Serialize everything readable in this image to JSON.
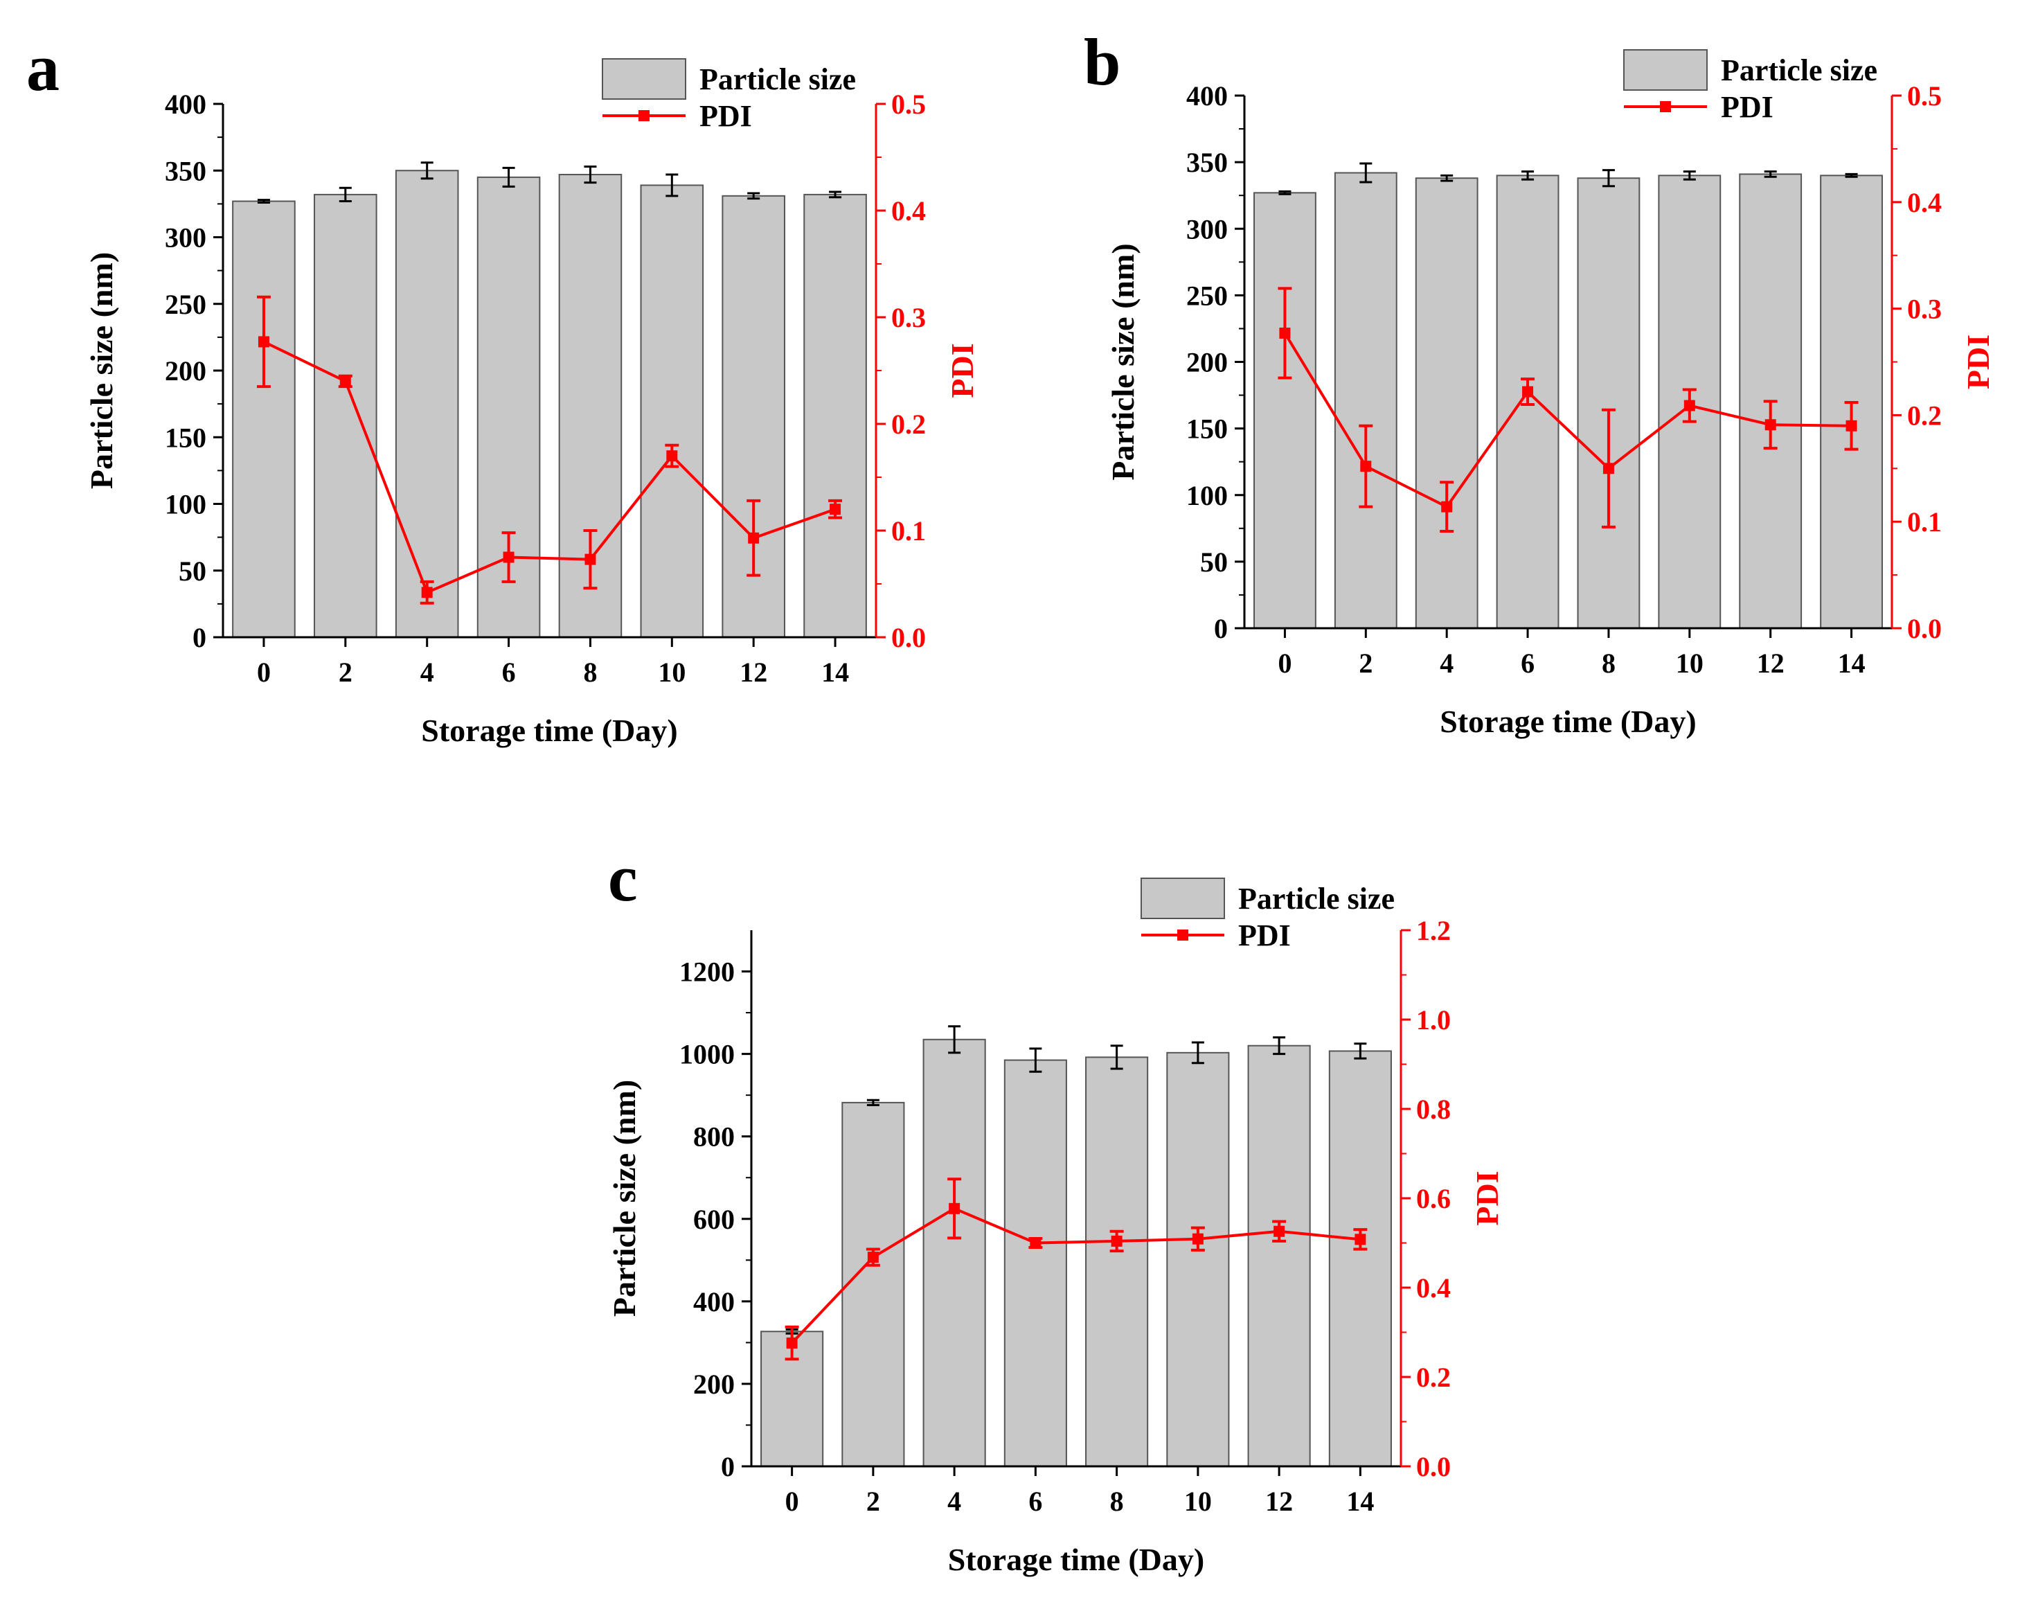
{
  "figure": {
    "colors": {
      "bar_fill": "#c8c8c8",
      "bar_stroke": "#555555",
      "axis": "#000000",
      "pdi": "#ff0000",
      "background": "#ffffff"
    },
    "legend": {
      "bar_label": "Particle size",
      "line_label": "PDI"
    }
  },
  "chart_data": [
    {
      "panel": "a",
      "type": "bar+line",
      "xlabel": "Storage time (Day)",
      "ylabel": "Particle size (nm)",
      "y2label": "PDI",
      "x_ticks": [
        "0",
        "2",
        "4",
        "6",
        "8",
        "10",
        "12",
        "14"
      ],
      "ylim": [
        0,
        400
      ],
      "y_ticks": [
        0,
        50,
        100,
        150,
        200,
        250,
        300,
        350,
        400
      ],
      "y2lim": [
        0.0,
        0.5
      ],
      "y2_ticks": [
        "0.0",
        "0.1",
        "0.2",
        "0.3",
        "0.4",
        "0.5"
      ],
      "legend_position": "top-right",
      "series": [
        {
          "name": "Particle size",
          "axis": "left",
          "kind": "bar",
          "values": [
            327,
            332,
            350,
            345,
            347,
            339,
            331,
            332
          ],
          "errors": [
            1,
            5,
            6,
            7,
            6,
            8,
            2,
            2
          ]
        },
        {
          "name": "PDI",
          "axis": "right",
          "kind": "line",
          "values": [
            0.277,
            0.24,
            0.042,
            0.075,
            0.073,
            0.17,
            0.093,
            0.12
          ],
          "errors": [
            0.042,
            0.005,
            0.01,
            0.023,
            0.027,
            0.01,
            0.035,
            0.008
          ]
        }
      ]
    },
    {
      "panel": "b",
      "type": "bar+line",
      "xlabel": "Storage time (Day)",
      "ylabel": "Particle size (nm)",
      "y2label": "PDI",
      "x_ticks": [
        "0",
        "2",
        "4",
        "6",
        "8",
        "10",
        "12",
        "14"
      ],
      "ylim": [
        0,
        400
      ],
      "y_ticks": [
        0,
        50,
        100,
        150,
        200,
        250,
        300,
        350,
        400
      ],
      "y2lim": [
        0.0,
        0.5
      ],
      "y2_ticks": [
        "0.0",
        "0.1",
        "0.2",
        "0.3",
        "0.4",
        "0.5"
      ],
      "legend_position": "top-right",
      "series": [
        {
          "name": "Particle size",
          "axis": "left",
          "kind": "bar",
          "values": [
            327,
            342,
            338,
            340,
            338,
            340,
            341,
            340
          ],
          "errors": [
            1,
            7,
            2,
            3,
            6,
            3,
            2,
            1
          ]
        },
        {
          "name": "PDI",
          "axis": "right",
          "kind": "line",
          "values": [
            0.277,
            0.152,
            0.114,
            0.222,
            0.15,
            0.209,
            0.191,
            0.19
          ],
          "errors": [
            0.042,
            0.038,
            0.023,
            0.012,
            0.055,
            0.015,
            0.022,
            0.022
          ]
        }
      ]
    },
    {
      "panel": "c",
      "type": "bar+line",
      "xlabel": "Storage time (Day)",
      "ylabel": "Particle size (nm)",
      "y2label": "PDI",
      "x_ticks": [
        "0",
        "2",
        "4",
        "6",
        "8",
        "10",
        "12",
        "14"
      ],
      "ylim": [
        0,
        1300
      ],
      "y_ticks": [
        0,
        200,
        400,
        600,
        800,
        1000,
        1200
      ],
      "y2lim": [
        0.0,
        1.2
      ],
      "y2_ticks": [
        "0.0",
        "0.2",
        "0.4",
        "0.6",
        "0.8",
        "1.0",
        "1.2"
      ],
      "legend_position": "top-right",
      "series": [
        {
          "name": "Particle size",
          "axis": "left",
          "kind": "bar",
          "values": [
            327,
            882,
            1035,
            985,
            992,
            1003,
            1020,
            1007
          ],
          "errors": [
            5,
            6,
            32,
            28,
            28,
            25,
            20,
            18
          ]
        },
        {
          "name": "PDI",
          "axis": "right",
          "kind": "line",
          "values": [
            0.276,
            0.468,
            0.577,
            0.5,
            0.504,
            0.509,
            0.526,
            0.508
          ],
          "errors": [
            0.036,
            0.018,
            0.066,
            0.01,
            0.022,
            0.025,
            0.022,
            0.022
          ]
        }
      ]
    }
  ]
}
